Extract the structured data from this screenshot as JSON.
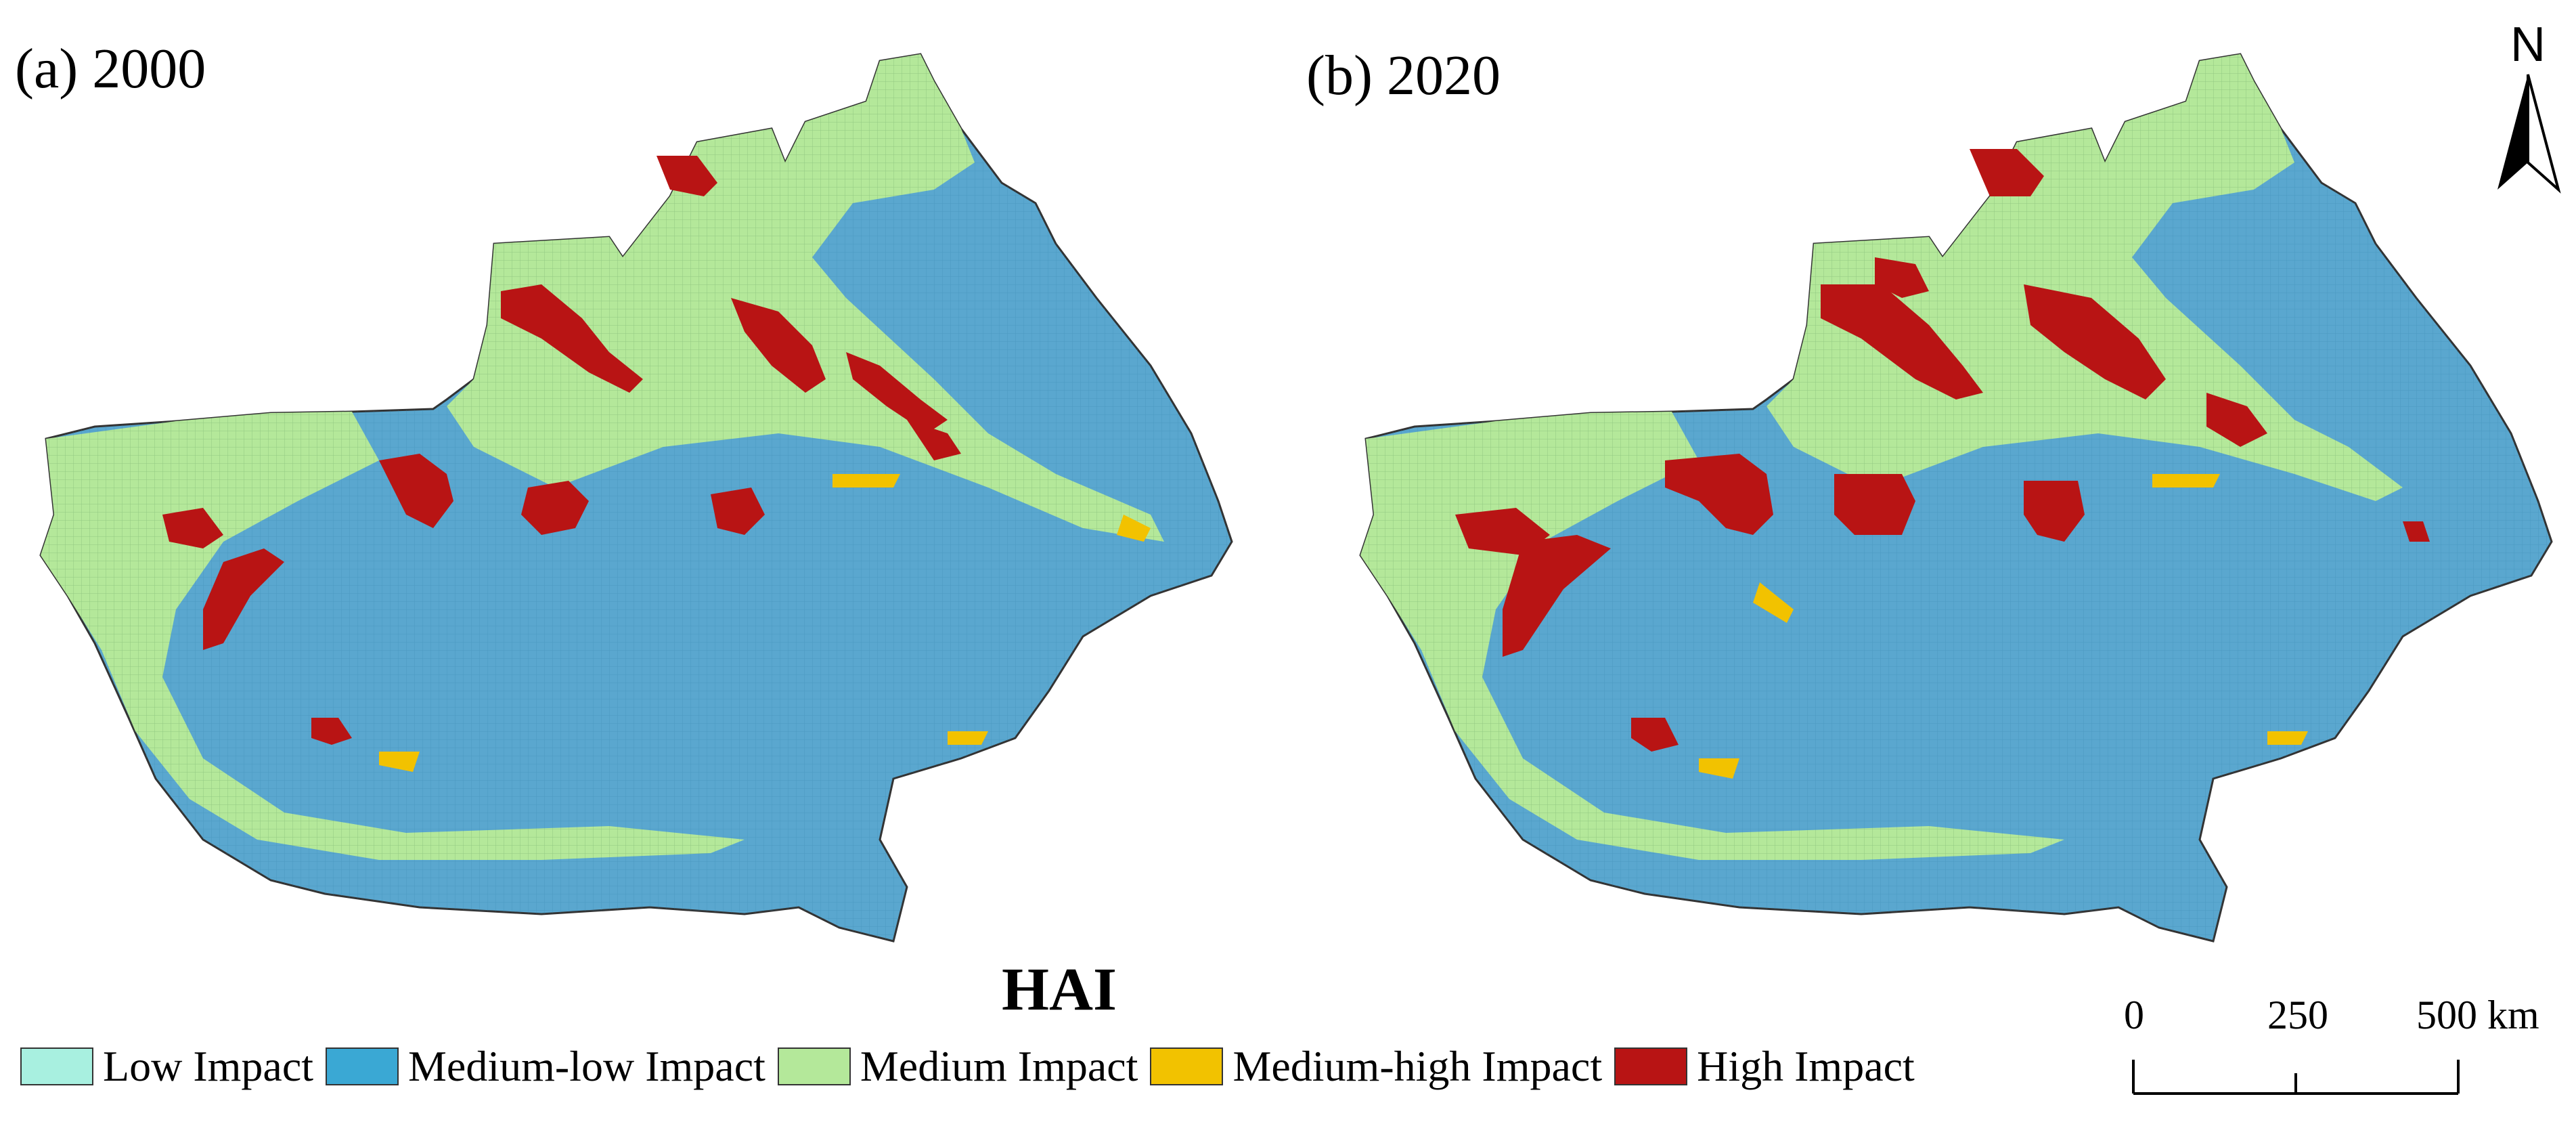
{
  "panels": [
    {
      "label": "(a) 2000"
    },
    {
      "label": "(b) 2020"
    }
  ],
  "legend": {
    "title": "HAI",
    "items": [
      {
        "label": "Low Impact",
        "color": "#a8f0e0"
      },
      {
        "label": "Medium-low Impact",
        "color": "#3aa8d4"
      },
      {
        "label": "Medium Impact",
        "color": "#b4e89a"
      },
      {
        "label": "Medium-high Impact",
        "color": "#f2c200"
      },
      {
        "label": "High Impact",
        "color": "#b81414"
      }
    ]
  },
  "north_arrow": {
    "letter": "N"
  },
  "scale_bar": {
    "ticks": [
      "0",
      "250",
      "500 km"
    ]
  },
  "colors": {
    "land_base": "#5aa7cf",
    "outline": "#333333"
  }
}
